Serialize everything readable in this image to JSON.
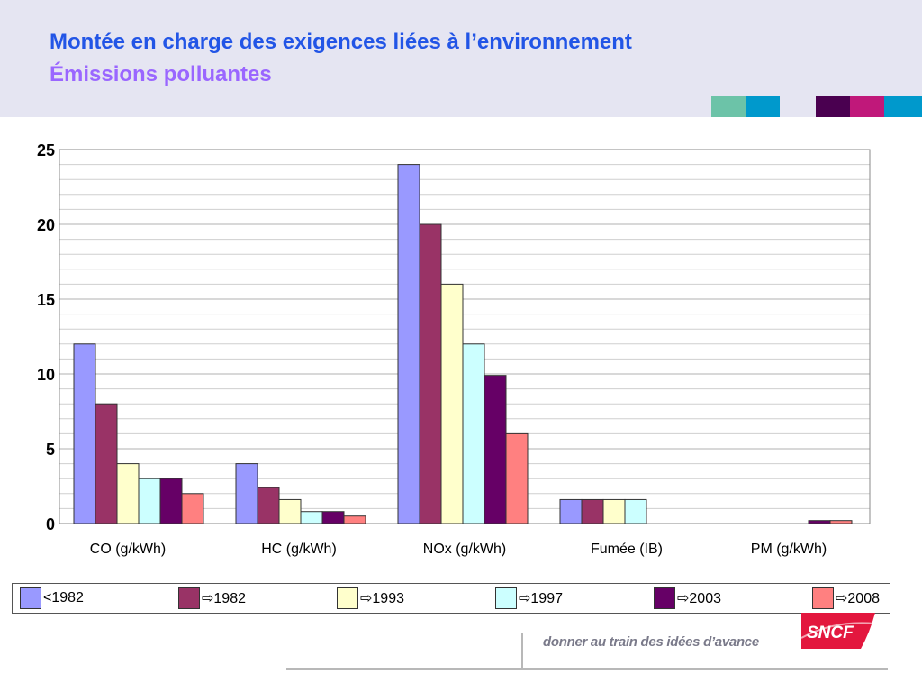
{
  "header": {
    "title": "Montée en charge des exigences liées à l’environnement",
    "subtitle": "Émissions polluantes"
  },
  "colors": {
    "header_bg": "#e5e5f2",
    "title": "#2255e6",
    "subtitle": "#9a66ff",
    "stripes": [
      "#6cc3a8",
      "#0099cc",
      "#4a0050",
      "#c0187a",
      "#0099cc"
    ]
  },
  "chart_data": {
    "type": "bar",
    "title": "",
    "xlabel": "",
    "ylabel": "",
    "ylim": [
      0,
      25
    ],
    "yticks": [
      "0",
      "5",
      "10",
      "15",
      "20",
      "25"
    ],
    "grid": true,
    "legend_position": "bottom",
    "categories": [
      "CO (g/kWh)",
      "HC (g/kWh)",
      "NOx (g/kWh)",
      "Fumée (IB)",
      "PM (g/kWh)"
    ],
    "series": [
      {
        "name": "<1982",
        "color": "#9999ff",
        "values": [
          12,
          4,
          24,
          1.6,
          0
        ]
      },
      {
        "name": "1982",
        "color": "#993366",
        "values": [
          8,
          2.4,
          20,
          1.6,
          0
        ]
      },
      {
        "name": "1993",
        "color": "#ffffcc",
        "values": [
          4,
          1.6,
          16,
          1.6,
          0
        ]
      },
      {
        "name": "1997",
        "color": "#ccffff",
        "values": [
          3,
          0.8,
          12,
          1.6,
          0
        ]
      },
      {
        "name": "2003",
        "color": "#660066",
        "values": [
          3,
          0.8,
          9.9,
          0,
          0.2
        ]
      },
      {
        "name": "2008",
        "color": "#ff8080",
        "values": [
          2,
          0.5,
          6,
          0,
          0.2
        ]
      }
    ],
    "legend_arrow": "⇨"
  },
  "footer": {
    "tagline": "donner au train des idées d’avance",
    "logo_text": "SNCF"
  }
}
